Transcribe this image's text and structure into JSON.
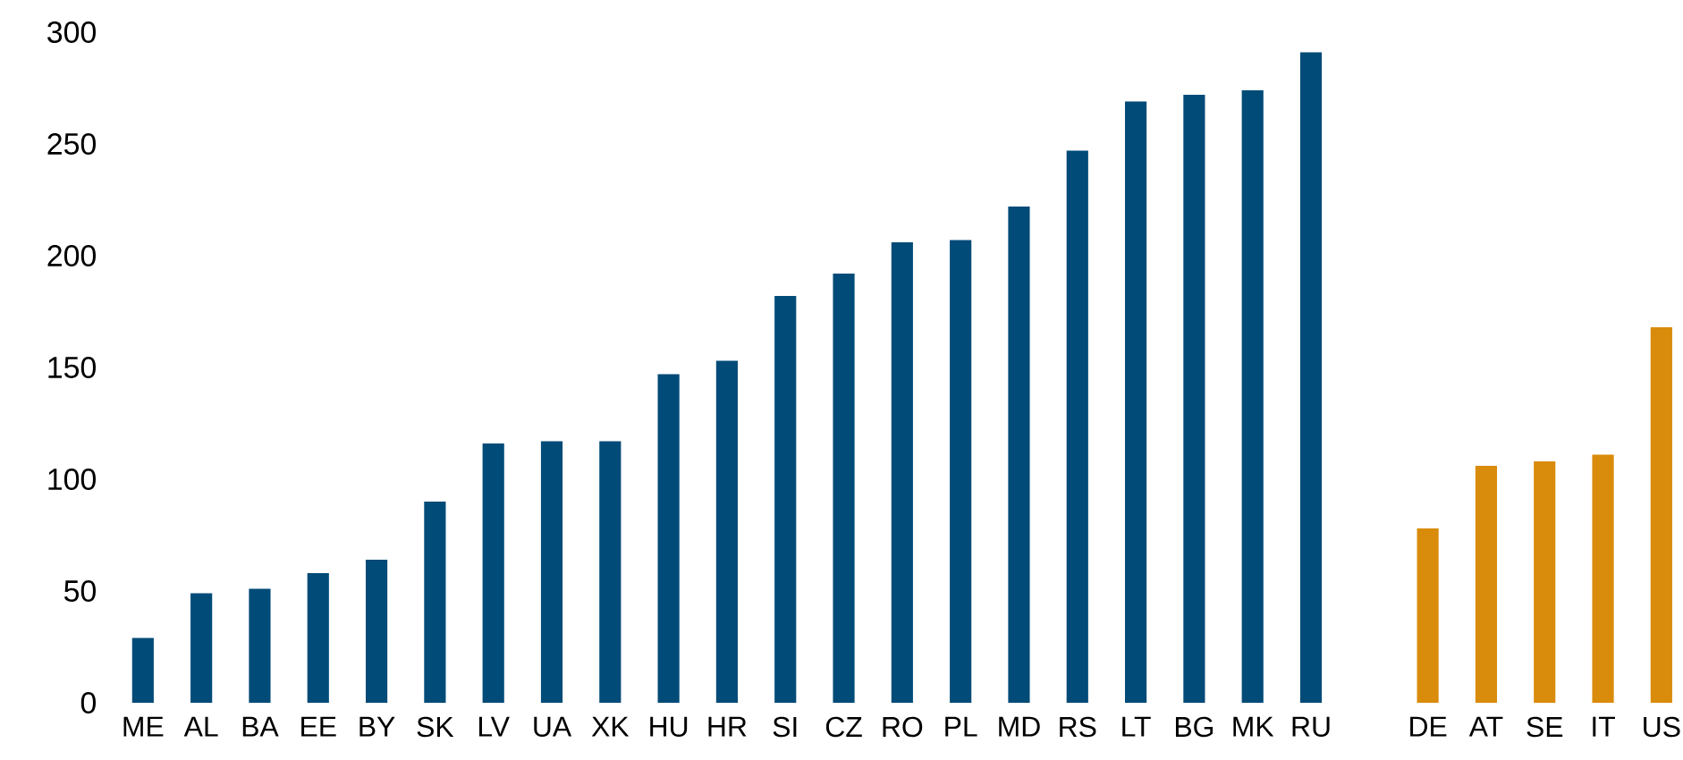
{
  "chart_data": {
    "type": "bar",
    "categories": [
      "ME",
      "AL",
      "BA",
      "EE",
      "BY",
      "SK",
      "LV",
      "UA",
      "XK",
      "HU",
      "HR",
      "SI",
      "CZ",
      "RO",
      "PL",
      "MD",
      "RS",
      "LT",
      "BG",
      "MK",
      "RU",
      null,
      "DE",
      "AT",
      "SE",
      "IT",
      "US"
    ],
    "values": [
      29,
      49,
      51,
      58,
      64,
      90,
      116,
      117,
      117,
      147,
      153,
      182,
      192,
      206,
      207,
      222,
      247,
      269,
      272,
      274,
      291,
      null,
      78,
      106,
      108,
      111,
      168
    ],
    "colors": [
      "#004b78",
      "#004b78",
      "#004b78",
      "#004b78",
      "#004b78",
      "#004b78",
      "#004b78",
      "#004b78",
      "#004b78",
      "#004b78",
      "#004b78",
      "#004b78",
      "#004b78",
      "#004b78",
      "#004b78",
      "#004b78",
      "#004b78",
      "#004b78",
      "#004b78",
      "#004b78",
      "#004b78",
      null,
      "#d98b0b",
      "#d98b0b",
      "#d98b0b",
      "#d98b0b",
      "#d98b0b"
    ],
    "ylim": [
      0,
      300
    ],
    "yticks": [
      0,
      50,
      100,
      150,
      200,
      250,
      300
    ]
  }
}
